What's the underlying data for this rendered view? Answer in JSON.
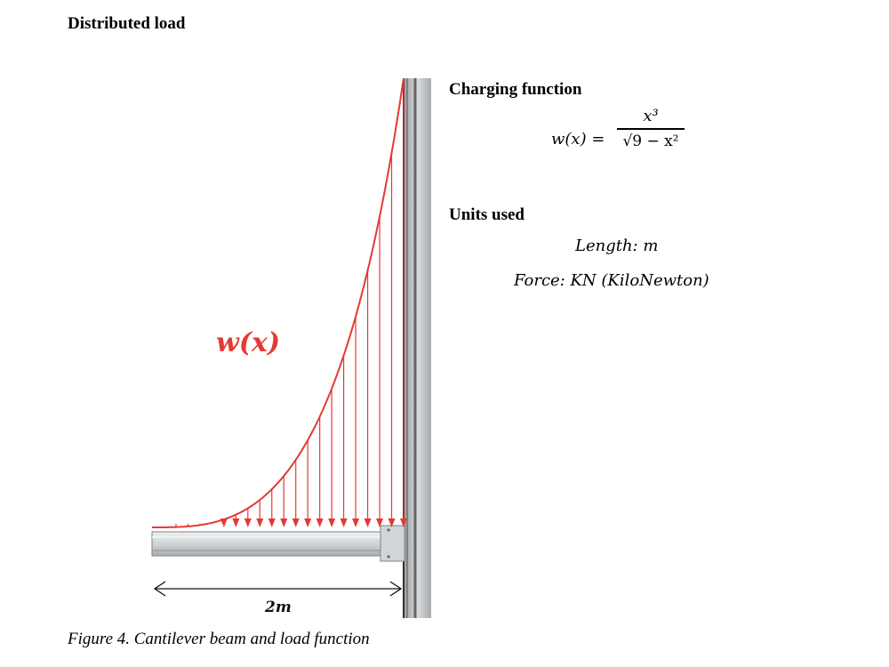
{
  "title": "Distributed load",
  "charging_function": {
    "heading": "Charging function",
    "lhs": "w(x) =",
    "numerator": "x³",
    "denominator": "√9 − x²"
  },
  "units": {
    "heading": "Units used",
    "length": "Length: m",
    "force": "Force: KN (KiloNewton)"
  },
  "diagram": {
    "load_label": "w(x)",
    "span_label": "2m",
    "load_color": "#e53935",
    "beam_color": "#c9ccd0",
    "wall_color": "#bfc2c5"
  },
  "caption": "Figure 4. Cantilever beam and load function"
}
